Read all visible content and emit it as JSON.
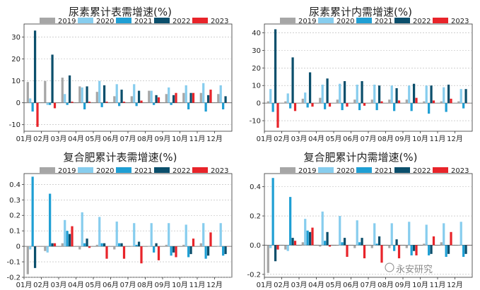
{
  "watermark": "永安研究",
  "series_colors": [
    "#a6a6a6",
    "#87cdee",
    "#1f9fd4",
    "#0b4f6c",
    "#e8242a"
  ],
  "chart_data": [
    {
      "type": "bar",
      "title": "尿素累计表需增速(%)",
      "categories": [
        "01月",
        "02月",
        "03月",
        "04月",
        "05月",
        "06月",
        "07月",
        "08月",
        "09月",
        "10月",
        "11月",
        "12月"
      ],
      "ylim": [
        -13,
        36
      ],
      "yticks": [
        -10,
        0,
        10,
        20,
        30
      ],
      "ytick_labels": [
        "-10",
        "0",
        "10",
        "20",
        "30"
      ],
      "legend": "top",
      "grid": true,
      "series": [
        {
          "name": "2019",
          "values": [
            9.5,
            10,
            11.5,
            7.5,
            5,
            3,
            3,
            5.5,
            4,
            4.5,
            4.5,
            4
          ]
        },
        {
          "name": "2020",
          "values": [
            2,
            -1,
            4,
            7,
            10,
            8.5,
            8.5,
            5.5,
            7,
            8,
            9,
            8
          ]
        },
        {
          "name": "2021",
          "values": [
            -4,
            -1,
            -1,
            -3,
            -2,
            -1.5,
            -1.5,
            -1,
            -1,
            -3,
            -4,
            -3
          ]
        },
        {
          "name": "2022",
          "values": [
            33,
            22,
            12.5,
            7.5,
            8,
            6,
            5.5,
            3.5,
            3.5,
            4.5,
            3.5,
            3
          ]
        },
        {
          "name": "2023",
          "values": [
            -11,
            -2.5,
            0.5,
            0.5,
            0.5,
            0.5,
            1,
            2.5,
            4.5,
            4.5,
            6,
            0
          ]
        }
      ]
    },
    {
      "type": "bar",
      "title": "尿素累计内需增速(%)",
      "categories": [
        "01月",
        "02月",
        "03月",
        "04月",
        "05月",
        "06月",
        "07月",
        "08月",
        "09月",
        "10月",
        "11月",
        "12月"
      ],
      "ylim": [
        -16,
        45
      ],
      "yticks": [
        -10,
        0,
        10,
        20,
        30,
        40
      ],
      "ytick_labels": [
        "-10",
        "0",
        "10",
        "20",
        "30",
        "40"
      ],
      "legend": "top",
      "grid": true,
      "series": [
        {
          "name": "2019",
          "values": [
            1,
            1,
            2.5,
            3,
            2,
            2,
            2,
            2,
            2,
            1,
            1,
            1
          ]
        },
        {
          "name": "2020",
          "values": [
            8,
            5.5,
            6,
            10.5,
            11,
            10.5,
            10.5,
            10,
            10,
            10,
            9,
            8
          ]
        },
        {
          "name": "2021",
          "values": [
            -5,
            -3,
            -2.5,
            -3.5,
            -4,
            -4,
            -4,
            -4.5,
            -4.5,
            -6,
            -5,
            -3
          ]
        },
        {
          "name": "2022",
          "values": [
            42,
            26,
            17.5,
            14,
            12.5,
            12.5,
            10,
            8.5,
            11,
            10,
            10.5,
            8
          ]
        },
        {
          "name": "2023",
          "values": [
            -14,
            -4.5,
            -2,
            -2,
            -2,
            -1.5,
            1,
            1.5,
            3,
            1.5,
            2.5,
            0
          ]
        }
      ]
    },
    {
      "type": "bar",
      "title": "复合肥累计表需增速(%)",
      "categories": [
        "01月",
        "02月",
        "03月",
        "04月",
        "05月",
        "06月",
        "07月",
        "08月",
        "09月",
        "10月",
        "11月",
        "12月"
      ],
      "ylim": [
        -0.2,
        0.47
      ],
      "yticks": [
        -0.2,
        -0.1,
        0,
        0.1,
        0.2,
        0.3,
        0.4
      ],
      "ytick_labels": [
        "-0.2",
        "-0.1",
        "0",
        "0.1",
        "0.2",
        "0.3",
        "0.4"
      ],
      "legend": "top",
      "grid": true,
      "series": [
        {
          "name": "2019",
          "values": [
            -0.18,
            -0.03,
            0.02,
            -0.02,
            0.01,
            -0.02,
            0.0,
            0.0,
            0.01,
            0.01,
            0.02,
            0.0
          ]
        },
        {
          "name": "2020",
          "values": [
            -0.02,
            -0.04,
            0.17,
            0.22,
            0.19,
            0.16,
            0.15,
            0.15,
            0.15,
            0.14,
            0.15,
            0.15
          ]
        },
        {
          "name": "2021",
          "values": [
            0.45,
            0.34,
            0.1,
            0.02,
            0.02,
            0.02,
            0.01,
            -0.04,
            -0.06,
            -0.07,
            -0.08,
            -0.06
          ]
        },
        {
          "name": "2022",
          "values": [
            -0.14,
            0.02,
            0.08,
            0.05,
            0.02,
            0.02,
            0.03,
            0.02,
            -0.04,
            -0.05,
            -0.06,
            -0.05
          ]
        },
        {
          "name": "2023",
          "values": [
            0.0,
            0.02,
            0.13,
            -0.01,
            -0.08,
            -0.08,
            -0.11,
            -0.09,
            -0.07,
            0.05,
            0.09,
            0.0
          ]
        }
      ]
    },
    {
      "type": "bar",
      "title": "复合肥累计内需增速(%)",
      "categories": [
        "01月",
        "02月",
        "03月",
        "04月",
        "05月",
        "06月",
        "07月",
        "08月",
        "09月",
        "10月",
        "11月",
        "12月"
      ],
      "ylim": [
        -0.22,
        0.49
      ],
      "yticks": [
        -0.2,
        0,
        0.2,
        0.4
      ],
      "ytick_labels": [
        "-0.2",
        "0.0",
        "0.2",
        "0.4"
      ],
      "legend": "top",
      "grid": true,
      "series": [
        {
          "name": "2019",
          "values": [
            -0.19,
            -0.03,
            0.02,
            -0.01,
            0.0,
            -0.02,
            -0.02,
            -0.02,
            -0.02,
            0.01,
            0.02,
            0.0
          ]
        },
        {
          "name": "2020",
          "values": [
            -0.02,
            -0.04,
            0.18,
            0.23,
            0.2,
            0.17,
            0.15,
            0.15,
            0.16,
            0.14,
            0.15,
            0.16
          ]
        },
        {
          "name": "2021",
          "values": [
            0.46,
            0.33,
            0.1,
            0.03,
            0.02,
            0.02,
            0.01,
            -0.04,
            -0.07,
            -0.07,
            -0.08,
            -0.08
          ]
        },
        {
          "name": "2022",
          "values": [
            -0.11,
            0.05,
            0.09,
            0.09,
            0.05,
            0.05,
            0.06,
            0.04,
            -0.04,
            -0.06,
            -0.06,
            -0.06
          ]
        },
        {
          "name": "2023",
          "values": [
            -0.03,
            0.03,
            0.12,
            -0.01,
            -0.08,
            -0.09,
            -0.12,
            -0.09,
            -0.07,
            0.06,
            0.09,
            0.0
          ]
        }
      ]
    }
  ]
}
